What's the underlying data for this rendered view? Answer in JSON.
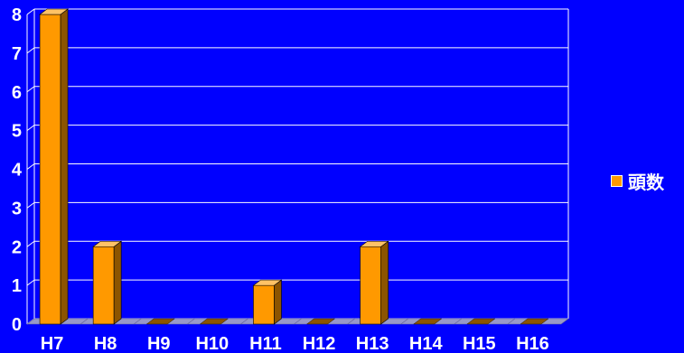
{
  "chart_data": {
    "type": "bar",
    "categories": [
      "H7",
      "H8",
      "H9",
      "H10",
      "H11",
      "H12",
      "H13",
      "H14",
      "H15",
      "H16"
    ],
    "series": [
      {
        "name": "頭数",
        "values": [
          8,
          2,
          0,
          0,
          1,
          0,
          2,
          0,
          0,
          0
        ]
      }
    ],
    "yticks": [
      "0",
      "1",
      "2",
      "3",
      "4",
      "5",
      "6",
      "7",
      "8"
    ],
    "ylim": [
      0,
      8
    ],
    "grid": true,
    "legend_position": "right",
    "colors": {
      "background": "#0000FF",
      "bar_front": "#FF9900",
      "bar_side": "#8C5400",
      "bar_top": "#FFC266",
      "floor": "#9898C8",
      "grid": "#FFFFFF",
      "text": "#FFFFFF"
    }
  }
}
